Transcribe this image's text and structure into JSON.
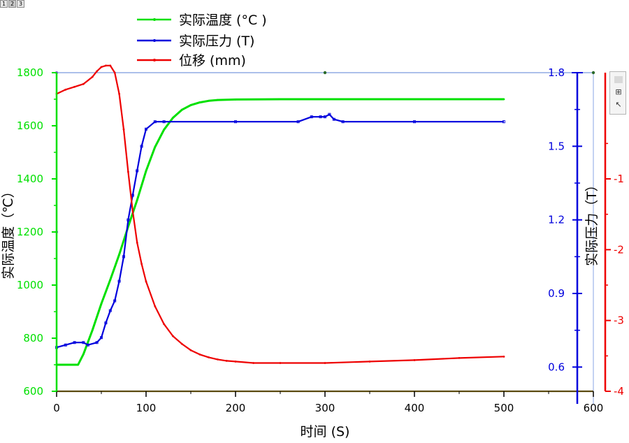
{
  "page_tabs": [
    {
      "label": "1"
    },
    {
      "label": "2"
    },
    {
      "label": "3"
    }
  ],
  "mini_toolbar": {
    "zoom_icon": "zoom-fit-icon",
    "pointer_icon": "pointer-icon"
  },
  "chart_data": {
    "type": "line",
    "xlabel": "时间 (S)",
    "xlim": [
      0,
      600
    ],
    "xticks": [
      0,
      100,
      200,
      300,
      400,
      500,
      600
    ],
    "legend_position": "top-center",
    "axes": {
      "temperature": {
        "label": "实际温度（℃）",
        "ylim": [
          600,
          1800
        ],
        "ticks": [
          600,
          800,
          1000,
          1200,
          1400,
          1600,
          1800
        ],
        "color": "#00e000",
        "side": "left"
      },
      "pressure": {
        "label": "实际压力（T）",
        "ylim": [
          0.45,
          1.8
        ],
        "ticks": [
          0.6,
          0.9,
          1.2,
          1.5,
          1.8
        ],
        "color": "#0000dd",
        "side": "right"
      },
      "displacement": {
        "label": "",
        "ylim": [
          -4,
          0.5
        ],
        "ticks": [
          -4,
          -3,
          -2,
          -1
        ],
        "color": "#ee0000",
        "side": "right-outer"
      }
    },
    "series": [
      {
        "name": "实际温度 (°C )",
        "axis": "temperature",
        "color": "#00e000",
        "x": [
          0,
          12,
          24,
          30,
          40,
          50,
          60,
          70,
          80,
          90,
          100,
          110,
          120,
          130,
          140,
          150,
          160,
          170,
          180,
          200,
          250,
          300,
          400,
          500
        ],
        "y": [
          700,
          700,
          700,
          740,
          830,
          930,
          1020,
          1115,
          1220,
          1320,
          1430,
          1520,
          1585,
          1630,
          1660,
          1678,
          1688,
          1694,
          1697,
          1699,
          1700,
          1700,
          1700,
          1700
        ]
      },
      {
        "name": "实际压力 (T)",
        "axis": "pressure",
        "color": "#0000dd",
        "x": [
          0,
          10,
          20,
          30,
          35,
          45,
          50,
          55,
          60,
          65,
          70,
          75,
          80,
          85,
          90,
          95,
          100,
          110,
          120,
          200,
          270,
          285,
          295,
          300,
          305,
          310,
          320,
          400,
          500
        ],
        "y": [
          0.68,
          0.69,
          0.7,
          0.7,
          0.69,
          0.7,
          0.72,
          0.78,
          0.83,
          0.87,
          0.95,
          1.05,
          1.2,
          1.3,
          1.4,
          1.5,
          1.57,
          1.6,
          1.6,
          1.6,
          1.6,
          1.62,
          1.62,
          1.62,
          1.63,
          1.61,
          1.6,
          1.6,
          1.6
        ]
      },
      {
        "name": "位移 (mm)",
        "axis": "displacement",
        "color": "#ee0000",
        "x": [
          0,
          10,
          20,
          30,
          40,
          45,
          50,
          55,
          60,
          65,
          70,
          75,
          80,
          85,
          90,
          95,
          100,
          110,
          120,
          130,
          140,
          150,
          160,
          170,
          180,
          190,
          200,
          220,
          250,
          300,
          350,
          400,
          450,
          500
        ],
        "y": [
          0.2,
          0.26,
          0.3,
          0.34,
          0.44,
          0.52,
          0.58,
          0.6,
          0.6,
          0.5,
          0.2,
          -0.3,
          -0.9,
          -1.45,
          -1.9,
          -2.2,
          -2.45,
          -2.8,
          -3.05,
          -3.22,
          -3.33,
          -3.42,
          -3.48,
          -3.52,
          -3.55,
          -3.57,
          -3.58,
          -3.6,
          -3.6,
          -3.6,
          -3.58,
          -3.56,
          -3.53,
          -3.51
        ]
      }
    ]
  }
}
